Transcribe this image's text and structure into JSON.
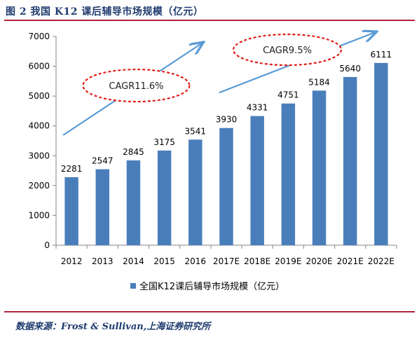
{
  "figure_title": "图 2 我国 K12 课后辅导市场规模（亿元）",
  "source": "数据来源：Frost & Sullivan,上海证券研究所",
  "chart_data": {
    "type": "bar",
    "categories": [
      "2012",
      "2013",
      "2014",
      "2015",
      "2016",
      "2017E",
      "2018E",
      "2019E",
      "2020E",
      "2021E",
      "2022E"
    ],
    "series": [
      {
        "name": "全国K12课后辅导市场规模（亿元）",
        "values": [
          2281,
          2547,
          2845,
          3175,
          3541,
          3930,
          4331,
          4751,
          5184,
          5640,
          6111
        ]
      }
    ],
    "ylim": [
      0,
      7000
    ],
    "yticks": [
      0,
      1000,
      2000,
      3000,
      4000,
      5000,
      6000,
      7000
    ],
    "grid": false,
    "legend_position": "bottom",
    "annotations": [
      {
        "text": "CAGR11.6%",
        "from": "2012",
        "to": "2016"
      },
      {
        "text": "CAGR9.5%",
        "from": "2016",
        "to": "2022E"
      }
    ],
    "colors": {
      "bar": "#4a7ebb",
      "annotation_ellipse": "#e0201a",
      "trend_arrow": "#5b9bd5"
    }
  }
}
